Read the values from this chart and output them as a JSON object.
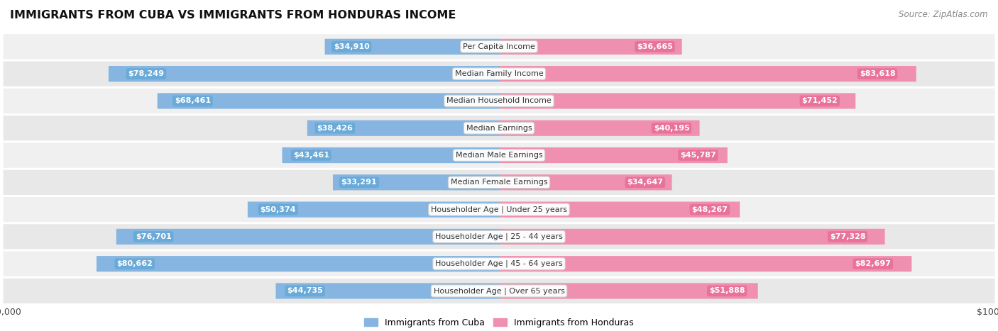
{
  "title": "IMMIGRANTS FROM CUBA VS IMMIGRANTS FROM HONDURAS INCOME",
  "source": "Source: ZipAtlas.com",
  "categories": [
    "Per Capita Income",
    "Median Family Income",
    "Median Household Income",
    "Median Earnings",
    "Median Male Earnings",
    "Median Female Earnings",
    "Householder Age | Under 25 years",
    "Householder Age | 25 - 44 years",
    "Householder Age | 45 - 64 years",
    "Householder Age | Over 65 years"
  ],
  "cuba_values": [
    34910,
    78249,
    68461,
    38426,
    43461,
    33291,
    50374,
    76701,
    80662,
    44735
  ],
  "honduras_values": [
    36665,
    83618,
    71452,
    40195,
    45787,
    34647,
    48267,
    77328,
    82697,
    51888
  ],
  "cuba_labels": [
    "$34,910",
    "$78,249",
    "$68,461",
    "$38,426",
    "$43,461",
    "$33,291",
    "$50,374",
    "$76,701",
    "$80,662",
    "$44,735"
  ],
  "honduras_labels": [
    "$36,665",
    "$83,618",
    "$71,452",
    "$40,195",
    "$45,787",
    "$34,647",
    "$48,267",
    "$77,328",
    "$82,697",
    "$51,888"
  ],
  "max_value": 100000,
  "cuba_color": "#85b5e0",
  "honduras_color": "#f090b0",
  "cuba_label_bg": "#6aaad8",
  "honduras_label_bg": "#e8729a",
  "label_color_inside_white": "#ffffff",
  "label_color_outside": "#555555",
  "bar_height": 0.58,
  "row_bg_colors": [
    "#f0f0f0",
    "#e8e8e8"
  ],
  "figsize": [
    14.06,
    4.67
  ],
  "dpi": 100,
  "inside_threshold": 20000,
  "category_label_fontsize": 8,
  "value_label_fontsize": 8
}
